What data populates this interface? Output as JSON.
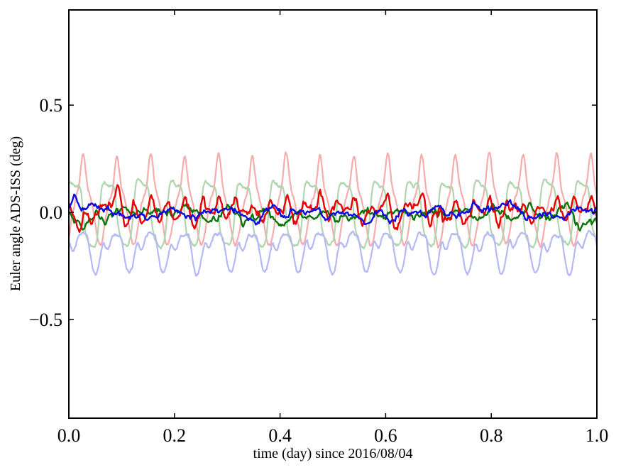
{
  "figure": {
    "background": "#ffffff",
    "axis_color": "#000000",
    "tick_label_color": "#000000"
  },
  "chart_data": {
    "type": "line",
    "title": "",
    "xlabel": "time (day) since 2016/08/04",
    "ylabel": "Euler angle ADS-ISS (deg)",
    "xlim": [
      0.0,
      1.0
    ],
    "ylim": [
      -0.96,
      0.944
    ],
    "grid": false,
    "legend": "none",
    "frame": "box",
    "tick_direction": "in",
    "xticks": {
      "values": [
        0.0,
        0.2,
        0.4,
        0.6,
        0.8,
        1.0
      ],
      "labels": [
        "0.0",
        "0.2",
        "0.4",
        "0.6",
        "0.8",
        "1.0"
      ]
    },
    "yticks": {
      "values": [
        0.5,
        0.0,
        -0.5
      ],
      "labels": [
        "0.5",
        "0.0",
        "−0.5"
      ]
    },
    "orbital_cycles_per_day": 15.6,
    "series": [
      {
        "name": "euler-angle-1-raw-pale-red",
        "color": "#f5acac",
        "line_width": 2.2,
        "samples": 1400,
        "approx_range": [
          -0.12,
          0.32
        ],
        "approx_mean": 0.02,
        "description": "periodic sharp positive peaks to ~+0.30, baseline dips to ~-0.11, ~15.6 cycles/day",
        "ar": {
          "sigma": 0.003,
          "rho": 0.9,
          "seed": 101,
          "clamp": 0.03
        },
        "terms": [
          {
            "kind": "sin",
            "amp": 0.105,
            "freq": 15.6,
            "phase": -1.0757
          },
          {
            "kind": "sin",
            "amp": 0.045,
            "freq": 31.2,
            "phase": -0.58
          },
          {
            "kind": "gauss_peak",
            "amp": 0.21,
            "freq": 15.6,
            "phase": 0.0788,
            "center": 0.5,
            "width": 0.075
          }
        ]
      },
      {
        "name": "euler-angle-2-raw-pale-green",
        "color": "#b0d6b0",
        "line_width": 2.2,
        "samples": 1400,
        "approx_range": [
          -0.16,
          0.16
        ],
        "approx_mean": 0.0,
        "description": "flattened oscillation between ~-0.15 and ~+0.15, ~15.6 cycles/day",
        "ar": {
          "sigma": 0.0025,
          "rho": 0.9,
          "seed": 202,
          "clamp": 0.025
        },
        "terms": [
          {
            "kind": "tanh_sin",
            "amp": 0.138,
            "k": 2.2,
            "freq": 15.6,
            "phase": 0.571
          },
          {
            "kind": "sin",
            "amp": 0.018,
            "freq": 31.2,
            "phase": 2.0
          }
        ]
      },
      {
        "name": "euler-angle-3-raw-pale-blue",
        "color": "#b5b9f5",
        "line_width": 2.2,
        "samples": 1400,
        "approx_range": [
          -0.3,
          -0.09
        ],
        "approx_mean": -0.19,
        "description": "always negative, double-dip (W) oscillation between ~-0.10 and ~-0.29, ~15.6 cycles/day",
        "ar": {
          "sigma": 0.0025,
          "rho": 0.9,
          "seed": 303,
          "clamp": 0.025
        },
        "terms": [
          {
            "kind": "const",
            "value": -0.105
          },
          {
            "kind": "halfsin_pow",
            "amp": -0.17,
            "pow": 1.3,
            "freq": 15.6,
            "phase": 2.9
          },
          {
            "kind": "halfsin_pow",
            "amp": -0.075,
            "pow": 3,
            "freq": 15.6,
            "phase": 0.7
          },
          {
            "kind": "sin",
            "amp": 0.012,
            "freq": 15.6,
            "phase": 0.2
          }
        ]
      },
      {
        "name": "euler-angle-2-filtered-green",
        "color": "#077507",
        "line_width": 2.4,
        "samples": 500,
        "approx_range": [
          -0.1,
          0.06
        ],
        "approx_mean": -0.012,
        "description": "noisy residual near zero, dips to ~-0.08",
        "ar": {
          "sigma": 0.009,
          "rho": 0.93,
          "seed": 505,
          "clamp": 0.06
        },
        "terms": [
          {
            "kind": "const",
            "value": -0.012
          },
          {
            "kind": "sin",
            "amp": 0.016,
            "freq": 15.6,
            "phase": 3.8
          },
          {
            "kind": "gauss_t",
            "amp": -0.05,
            "t0": 0.028,
            "w": 0.01
          },
          {
            "kind": "gauss_t",
            "amp": -0.055,
            "t0": 0.41,
            "w": 0.008
          }
        ]
      },
      {
        "name": "euler-angle-1-filtered-red",
        "color": "#e60000",
        "line_width": 2.4,
        "samples": 500,
        "approx_range": [
          -0.11,
          0.12
        ],
        "approx_mean": 0.0,
        "description": "noisy residual near zero with periodic spikes to ~±0.1",
        "ar": {
          "sigma": 0.011,
          "rho": 0.9,
          "seed": 404,
          "clamp": 0.06
        },
        "terms": [
          {
            "kind": "const",
            "value": 0.0
          },
          {
            "kind": "sin",
            "amp": 0.008,
            "freq": 15.6,
            "phase": 0.0
          },
          {
            "kind": "halfsin_pow",
            "amp": 0.065,
            "pow": 7,
            "freq": 15.6,
            "phase": 5.09
          },
          {
            "kind": "halfsin_pow",
            "amp": 0.05,
            "pow": 9,
            "freq": 15.6,
            "phase": 1.9
          },
          {
            "kind": "halfsin_pow",
            "amp": -0.045,
            "pow": 8,
            "freq": 15.6,
            "phase": 3.6
          },
          {
            "kind": "gauss_t",
            "amp": -0.085,
            "t0": 0.02,
            "w": 0.007
          }
        ]
      },
      {
        "name": "euler-angle-3-filtered-blue",
        "color": "#0b0bdf",
        "line_width": 2.4,
        "samples": 500,
        "approx_range": [
          -0.07,
          0.07
        ],
        "approx_mean": 0.0,
        "description": "noisy residual tightly around zero",
        "ar": {
          "sigma": 0.008,
          "rho": 0.92,
          "seed": 606,
          "clamp": 0.055
        },
        "terms": [
          {
            "kind": "const",
            "value": -0.002
          },
          {
            "kind": "sin",
            "amp": 0.011,
            "freq": 15.6,
            "phase": 1.6
          },
          {
            "kind": "gauss_t",
            "amp": 0.05,
            "t0": 0.012,
            "w": 0.007
          }
        ]
      }
    ]
  }
}
